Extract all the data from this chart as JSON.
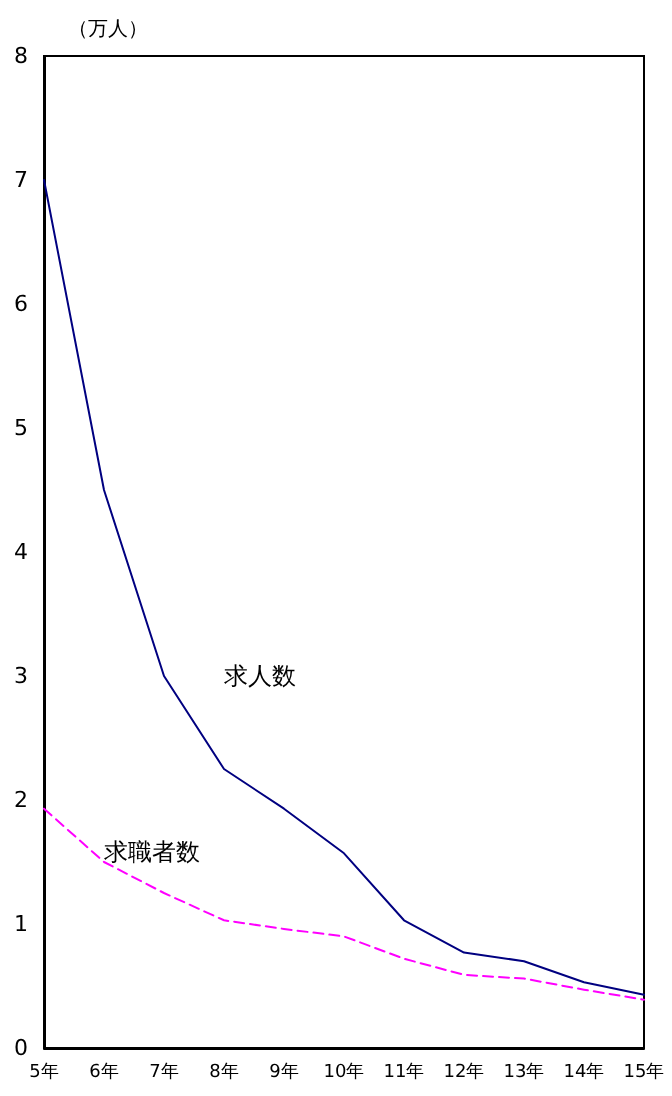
{
  "chart_data": {
    "type": "line",
    "ylabel": "（万人）",
    "categories": [
      "5年",
      "6年",
      "7年",
      "8年",
      "9年",
      "10年",
      "11年",
      "12年",
      "13年",
      "14年",
      "15年"
    ],
    "series": [
      {
        "name": "求人数",
        "color": "#000080",
        "line_style": "solid",
        "values": [
          7.0,
          4.5,
          3.0,
          2.25,
          1.93,
          1.57,
          1.03,
          0.77,
          0.7,
          0.53,
          0.43
        ]
      },
      {
        "name": "求職者数",
        "color": "#ff00ff",
        "line_style": "dashed",
        "values": [
          1.93,
          1.5,
          1.25,
          1.03,
          0.96,
          0.9,
          0.72,
          0.59,
          0.56,
          0.47,
          0.39
        ]
      }
    ],
    "ylim": [
      0,
      8
    ],
    "yticks": [
      0,
      1,
      2,
      3,
      4,
      5,
      6,
      7,
      8
    ],
    "grid": false,
    "legend": false,
    "marker": "none"
  }
}
